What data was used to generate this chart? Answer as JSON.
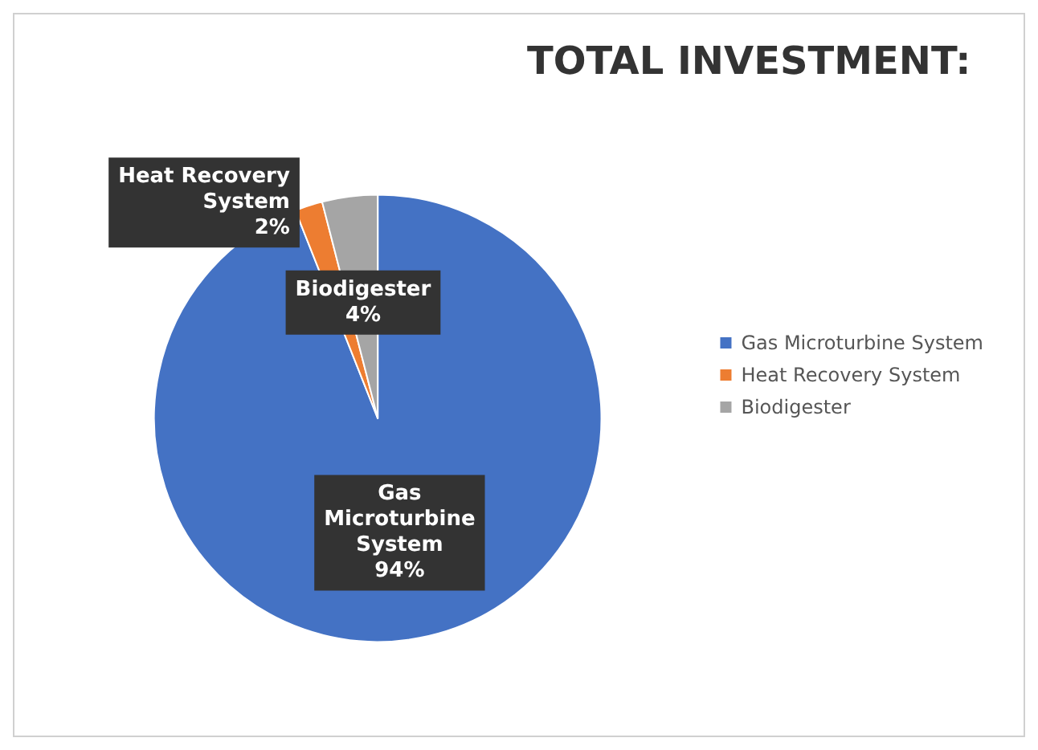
{
  "chart_data": {
    "type": "pie",
    "title": "TOTAL INVESTMENT:",
    "categories": [
      "Gas Microturbine System",
      "Heat Recovery System",
      "Biodigester"
    ],
    "values": [
      94,
      2,
      4
    ],
    "value_labels": [
      "94%",
      "2%",
      "4%"
    ],
    "colors": [
      "#4472c4",
      "#ed7d31",
      "#a5a5a5"
    ],
    "legend": "right"
  }
}
